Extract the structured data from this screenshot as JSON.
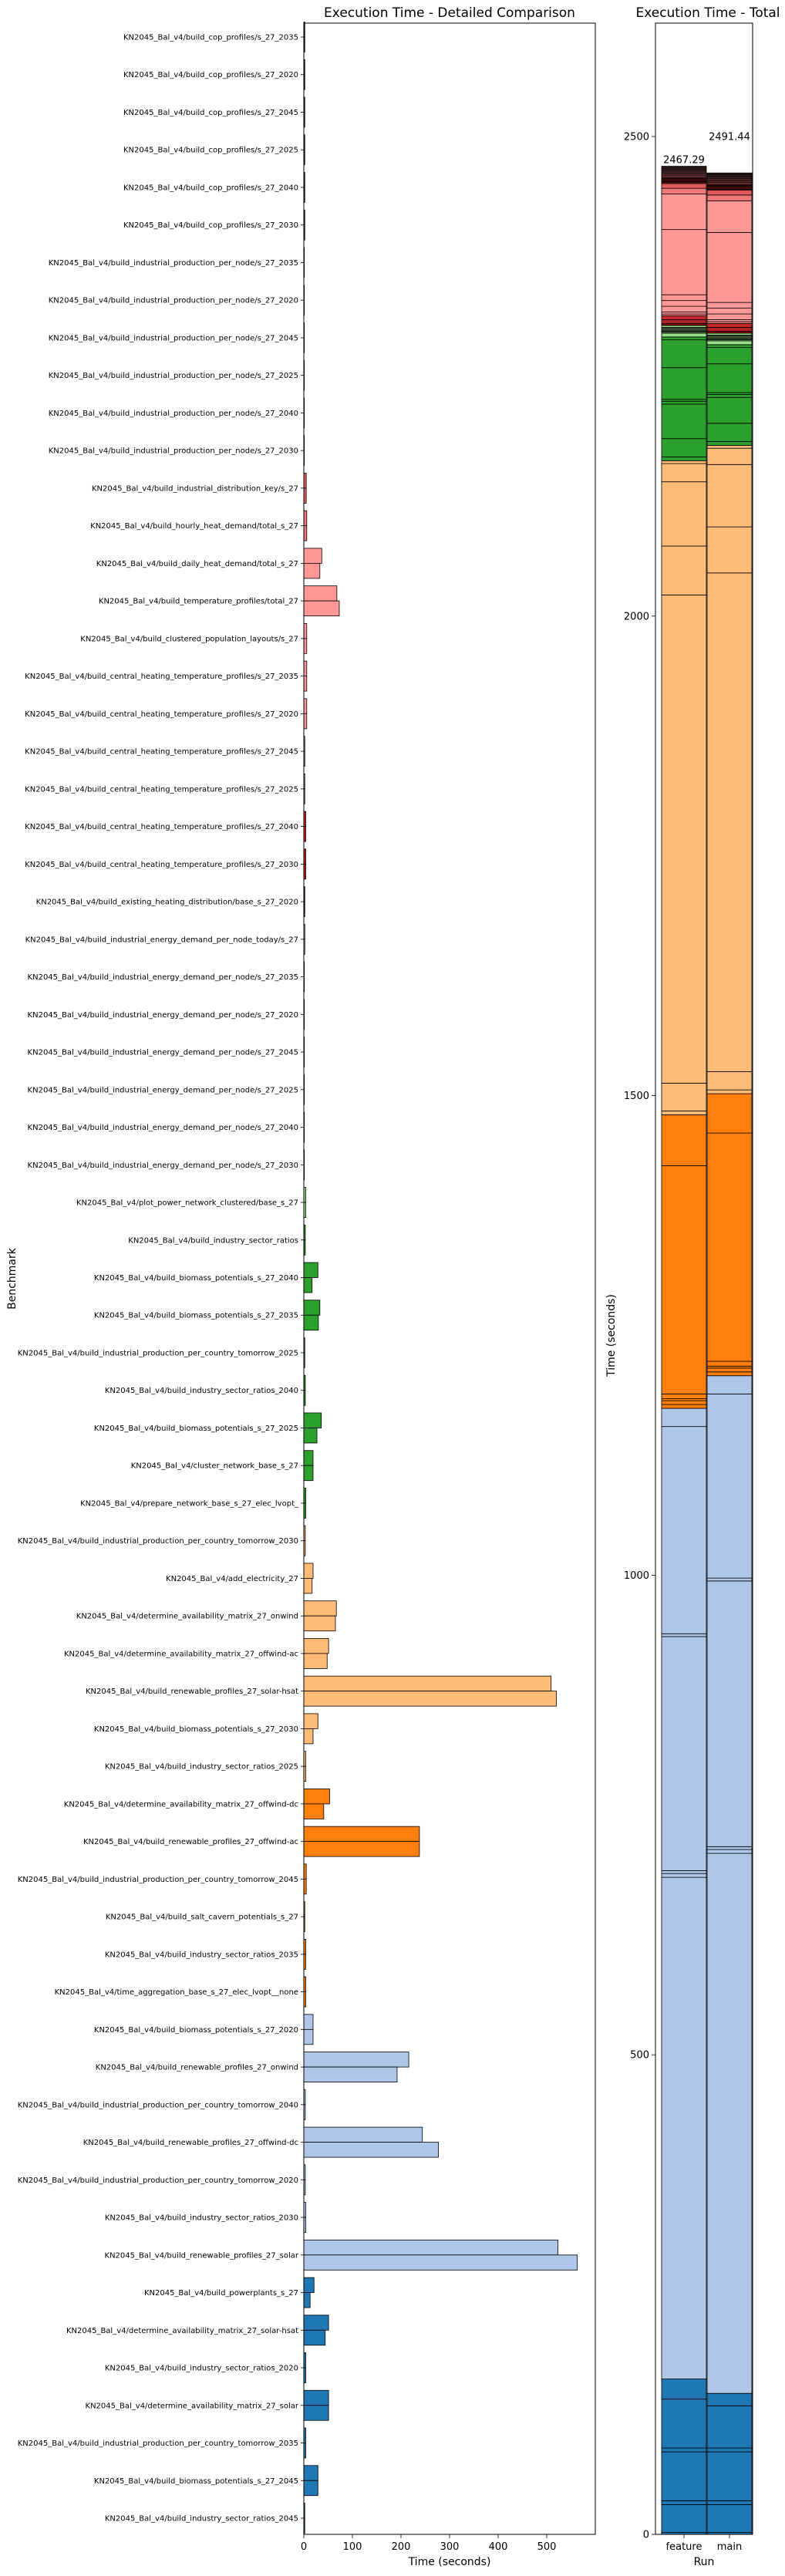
{
  "chart_data": [
    {
      "type": "bar",
      "orientation": "horizontal",
      "title": "Execution Time - Detailed Comparison",
      "xlabel": "Time (seconds)",
      "ylabel": "Benchmark",
      "xlim": [
        0,
        600
      ],
      "xticks": [
        0,
        100,
        200,
        300,
        400,
        500
      ],
      "grid": false,
      "series": [
        {
          "name": "feature"
        },
        {
          "name": "main"
        }
      ],
      "benchmarks": [
        {
          "label": "KN2045_Bal_v4/build_cop_profiles/s_27_2035",
          "feature": 2,
          "main": 2,
          "color": "#2c1a1a"
        },
        {
          "label": "KN2045_Bal_v4/build_cop_profiles/s_27_2020",
          "feature": 2,
          "main": 2,
          "color": "#3b2222"
        },
        {
          "label": "KN2045_Bal_v4/build_cop_profiles/s_27_2045",
          "feature": 2,
          "main": 2,
          "color": "#4a2a2a"
        },
        {
          "label": "KN2045_Bal_v4/build_cop_profiles/s_27_2025",
          "feature": 2,
          "main": 2,
          "color": "#5a3030"
        },
        {
          "label": "KN2045_Bal_v4/build_cop_profiles/s_27_2040",
          "feature": 2,
          "main": 2,
          "color": "#6b3535"
        },
        {
          "label": "KN2045_Bal_v4/build_cop_profiles/s_27_2030",
          "feature": 2,
          "main": 2,
          "color": "#7a3a3a"
        },
        {
          "label": "KN2045_Bal_v4/build_industrial_production_per_node/s_27_2035",
          "feature": 1,
          "main": 1,
          "color": "#8b1a1a"
        },
        {
          "label": "KN2045_Bal_v4/build_industrial_production_per_node/s_27_2020",
          "feature": 1,
          "main": 1,
          "color": "#9a2020"
        },
        {
          "label": "KN2045_Bal_v4/build_industrial_production_per_node/s_27_2045",
          "feature": 1,
          "main": 1,
          "color": "#aa1f1f"
        },
        {
          "label": "KN2045_Bal_v4/build_industrial_production_per_node/s_27_2025",
          "feature": 1,
          "main": 1,
          "color": "#b81c1c"
        },
        {
          "label": "KN2045_Bal_v4/build_industrial_production_per_node/s_27_2040",
          "feature": 1,
          "main": 1,
          "color": "#c62828"
        },
        {
          "label": "KN2045_Bal_v4/build_industrial_production_per_node/s_27_2030",
          "feature": 1,
          "main": 1,
          "color": "#d32f2f"
        },
        {
          "label": "KN2045_Bal_v4/build_industrial_distribution_key/s_27",
          "feature": 5,
          "main": 5,
          "color": "#e35a5a"
        },
        {
          "label": "KN2045_Bal_v4/build_hourly_heat_demand/total_s_27",
          "feature": 6,
          "main": 6,
          "color": "#f07a7a"
        },
        {
          "label": "KN2045_Bal_v4/build_daily_heat_demand/total_s_27",
          "feature": 37,
          "main": 33,
          "color": "#ff9896"
        },
        {
          "label": "KN2045_Bal_v4/build_temperature_profiles/total_27",
          "feature": 68,
          "main": 73,
          "color": "#ff9896"
        },
        {
          "label": "KN2045_Bal_v4/build_clustered_population_layouts/s_27",
          "feature": 6,
          "main": 6,
          "color": "#ff9896"
        },
        {
          "label": "KN2045_Bal_v4/build_central_heating_temperature_profiles/s_27_2035",
          "feature": 6,
          "main": 6,
          "color": "#ff9896"
        },
        {
          "label": "KN2045_Bal_v4/build_central_heating_temperature_profiles/s_27_2020",
          "feature": 6,
          "main": 6,
          "color": "#ff9896"
        },
        {
          "label": "KN2045_Bal_v4/build_central_heating_temperature_profiles/s_27_2045",
          "feature": 2,
          "main": 2,
          "color": "#ff9896"
        },
        {
          "label": "KN2045_Bal_v4/build_central_heating_temperature_profiles/s_27_2025",
          "feature": 2,
          "main": 2,
          "color": "#f08080"
        },
        {
          "label": "KN2045_Bal_v4/build_central_heating_temperature_profiles/s_27_2040",
          "feature": 4,
          "main": 4,
          "color": "#c62828"
        },
        {
          "label": "KN2045_Bal_v4/build_central_heating_temperature_profiles/s_27_2030",
          "feature": 4,
          "main": 4,
          "color": "#b22222"
        },
        {
          "label": "KN2045_Bal_v4/build_existing_heating_distribution/base_s_27_2020",
          "feature": 2,
          "main": 2,
          "color": "#8b0000"
        },
        {
          "label": "KN2045_Bal_v4/build_industrial_energy_demand_per_node_today/s_27",
          "feature": 2,
          "main": 2,
          "color": "#98df8a"
        },
        {
          "label": "KN2045_Bal_v4/build_industrial_energy_demand_per_node/s_27_2035",
          "feature": 1,
          "main": 1,
          "color": "#98df8a"
        },
        {
          "label": "KN2045_Bal_v4/build_industrial_energy_demand_per_node/s_27_2020",
          "feature": 1,
          "main": 1,
          "color": "#98df8a"
        },
        {
          "label": "KN2045_Bal_v4/build_industrial_energy_demand_per_node/s_27_2045",
          "feature": 1,
          "main": 1,
          "color": "#98df8a"
        },
        {
          "label": "KN2045_Bal_v4/build_industrial_energy_demand_per_node/s_27_2025",
          "feature": 1,
          "main": 1,
          "color": "#98df8a"
        },
        {
          "label": "KN2045_Bal_v4/build_industrial_energy_demand_per_node/s_27_2040",
          "feature": 1,
          "main": 1,
          "color": "#98df8a"
        },
        {
          "label": "KN2045_Bal_v4/build_industrial_energy_demand_per_node/s_27_2030",
          "feature": 1,
          "main": 1,
          "color": "#98df8a"
        },
        {
          "label": "KN2045_Bal_v4/plot_power_network_clustered/base_s_27",
          "feature": 4,
          "main": 4,
          "color": "#98df8a"
        },
        {
          "label": "KN2045_Bal_v4/build_industry_sector_ratios",
          "feature": 3,
          "main": 3,
          "color": "#2ca02c"
        },
        {
          "label": "KN2045_Bal_v4/build_biomass_potentials_s_27_2040",
          "feature": 29,
          "main": 17,
          "color": "#2ca02c"
        },
        {
          "label": "KN2045_Bal_v4/build_biomass_potentials_s_27_2035",
          "feature": 33,
          "main": 30,
          "color": "#2ca02c"
        },
        {
          "label": "KN2045_Bal_v4/build_industrial_production_per_country_tomorrow_2025",
          "feature": 2,
          "main": 2,
          "color": "#2ca02c"
        },
        {
          "label": "KN2045_Bal_v4/build_industry_sector_ratios_2040",
          "feature": 3,
          "main": 3,
          "color": "#2ca02c"
        },
        {
          "label": "KN2045_Bal_v4/build_biomass_potentials_s_27_2025",
          "feature": 36,
          "main": 27,
          "color": "#2ca02c"
        },
        {
          "label": "KN2045_Bal_v4/cluster_network_base_s_27",
          "feature": 19,
          "main": 19,
          "color": "#2ca02c"
        },
        {
          "label": "KN2045_Bal_v4/prepare_network_base_s_27_elec_lvopt_",
          "feature": 4,
          "main": 4,
          "color": "#2ca02c"
        },
        {
          "label": "KN2045_Bal_v4/build_industrial_production_per_country_tomorrow_2030",
          "feature": 3,
          "main": 3,
          "color": "#ffbb78"
        },
        {
          "label": "KN2045_Bal_v4/add_electricity_27",
          "feature": 19,
          "main": 17,
          "color": "#ffbb78"
        },
        {
          "label": "KN2045_Bal_v4/determine_availability_matrix_27_onwind",
          "feature": 67,
          "main": 65,
          "color": "#ffbb78"
        },
        {
          "label": "KN2045_Bal_v4/determine_availability_matrix_27_offwind-ac",
          "feature": 51,
          "main": 48,
          "color": "#ffbb78"
        },
        {
          "label": "KN2045_Bal_v4/build_renewable_profiles_27_solar-hsat",
          "feature": 509,
          "main": 520,
          "color": "#ffbb78"
        },
        {
          "label": "KN2045_Bal_v4/build_biomass_potentials_s_27_2030",
          "feature": 29,
          "main": 19,
          "color": "#ffbb78"
        },
        {
          "label": "KN2045_Bal_v4/build_industry_sector_ratios_2025",
          "feature": 4,
          "main": 4,
          "color": "#ffbb78"
        },
        {
          "label": "KN2045_Bal_v4/determine_availability_matrix_27_offwind-dc",
          "feature": 53,
          "main": 41,
          "color": "#ff7f0e"
        },
        {
          "label": "KN2045_Bal_v4/build_renewable_profiles_27_offwind-ac",
          "feature": 238,
          "main": 238,
          "color": "#ff7f0e"
        },
        {
          "label": "KN2045_Bal_v4/build_industrial_production_per_country_tomorrow_2045",
          "feature": 5,
          "main": 5,
          "color": "#ff7f0e"
        },
        {
          "label": "KN2045_Bal_v4/build_salt_cavern_potentials_s_27",
          "feature": 2,
          "main": 2,
          "color": "#ff7f0e"
        },
        {
          "label": "KN2045_Bal_v4/build_industry_sector_ratios_2035",
          "feature": 4,
          "main": 4,
          "color": "#ff7f0e"
        },
        {
          "label": "KN2045_Bal_v4/time_aggregation_base_s_27_elec_lvopt__none",
          "feature": 4,
          "main": 4,
          "color": "#ff7f0e"
        },
        {
          "label": "KN2045_Bal_v4/build_biomass_potentials_s_27_2020",
          "feature": 19,
          "main": 19,
          "color": "#aec7e8"
        },
        {
          "label": "KN2045_Bal_v4/build_renewable_profiles_27_onwind",
          "feature": 216,
          "main": 192,
          "color": "#aec7e8"
        },
        {
          "label": "KN2045_Bal_v4/build_industrial_production_per_country_tomorrow_2040",
          "feature": 3,
          "main": 3,
          "color": "#aec7e8"
        },
        {
          "label": "KN2045_Bal_v4/build_renewable_profiles_27_offwind-dc",
          "feature": 244,
          "main": 277,
          "color": "#aec7e8"
        },
        {
          "label": "KN2045_Bal_v4/build_industrial_production_per_country_tomorrow_2020",
          "feature": 3,
          "main": 3,
          "color": "#aec7e8"
        },
        {
          "label": "KN2045_Bal_v4/build_industry_sector_ratios_2030",
          "feature": 4,
          "main": 4,
          "color": "#aec7e8"
        },
        {
          "label": "KN2045_Bal_v4/build_renewable_profiles_27_solar",
          "feature": 523,
          "main": 563,
          "color": "#aec7e8"
        },
        {
          "label": "KN2045_Bal_v4/build_powerplants_s_27",
          "feature": 21,
          "main": 13,
          "color": "#1f77b4"
        },
        {
          "label": "KN2045_Bal_v4/determine_availability_matrix_27_solar-hsat",
          "feature": 51,
          "main": 44,
          "color": "#1f77b4"
        },
        {
          "label": "KN2045_Bal_v4/build_industry_sector_ratios_2020",
          "feature": 4,
          "main": 4,
          "color": "#1f77b4"
        },
        {
          "label": "KN2045_Bal_v4/determine_availability_matrix_27_solar",
          "feature": 51,
          "main": 51,
          "color": "#1f77b4"
        },
        {
          "label": "KN2045_Bal_v4/build_industrial_production_per_country_tomorrow_2035",
          "feature": 4,
          "main": 4,
          "color": "#1f77b4"
        },
        {
          "label": "KN2045_Bal_v4/build_biomass_potentials_s_27_2045",
          "feature": 29,
          "main": 29,
          "color": "#1f77b4"
        },
        {
          "label": "KN2045_Bal_v4/build_industry_sector_ratios_2045",
          "feature": 2,
          "main": 2,
          "color": "#1f77b4"
        }
      ]
    },
    {
      "type": "bar",
      "stacked": true,
      "title": "Execution Time - Total",
      "xlabel": "Run",
      "ylabel": "Time (seconds)",
      "ylim": [
        0,
        2500
      ],
      "yticks": [
        0,
        500,
        1000,
        1500,
        2000,
        2500
      ],
      "categories": [
        "feature",
        "main"
      ],
      "totals": [
        2467.29,
        2491.44
      ],
      "total_labels": [
        "2467.29",
        "2491.44"
      ],
      "stack_order": "bottom segment = last benchmark of the detailed comparison, top segment = first"
    }
  ]
}
